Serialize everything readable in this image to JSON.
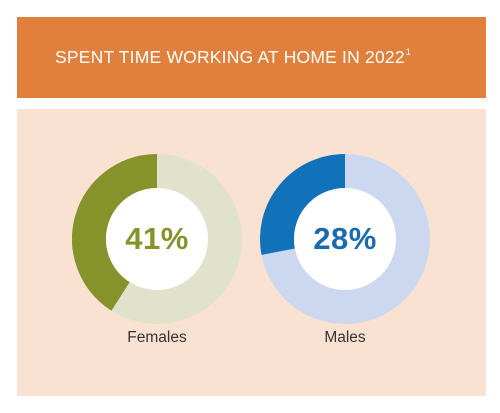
{
  "header": {
    "title": "SPENT TIME WORKING AT HOME IN 2022",
    "footnote": "1"
  },
  "colors": {
    "header_bg": "#e1803c",
    "panel_bg": "#fae2d2"
  },
  "chart_data": [
    {
      "type": "pie",
      "style": "donut",
      "category": "Females",
      "value": 41,
      "value_label": "41%",
      "max": 100,
      "color": "#86922a",
      "track_color": "#e0e2cb",
      "text_color": "#86922a"
    },
    {
      "type": "pie",
      "style": "donut",
      "category": "Males",
      "value": 28,
      "value_label": "28%",
      "max": 100,
      "color": "#1272b9",
      "track_color": "#ccd7f0",
      "text_color": "#1a6ab0"
    }
  ]
}
